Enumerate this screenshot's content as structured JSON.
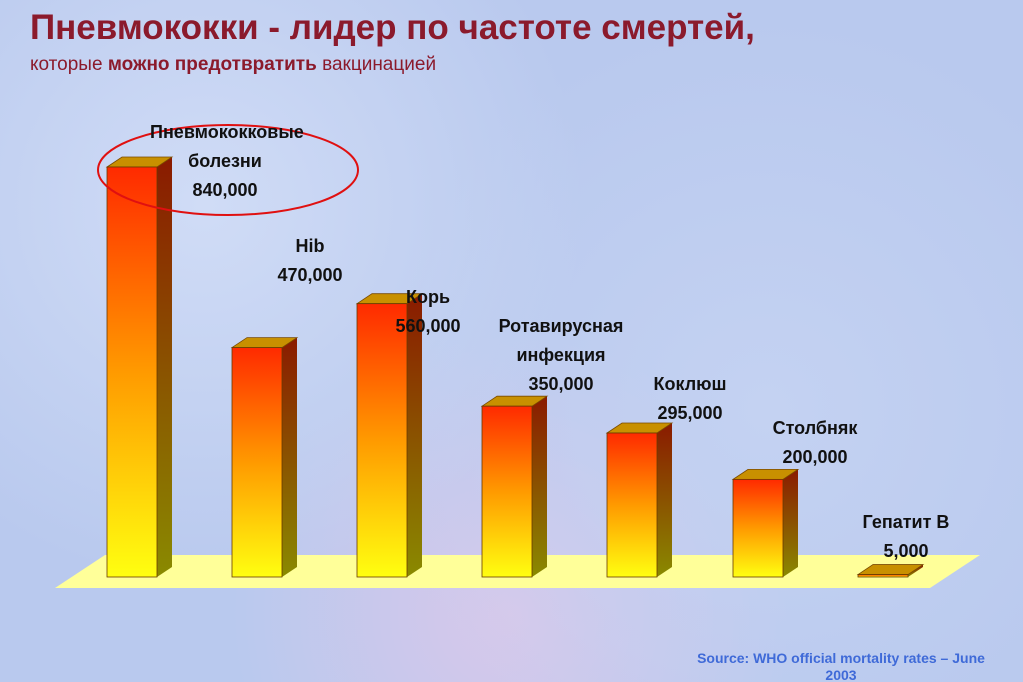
{
  "chart_data": {
    "type": "bar3d",
    "title": "Пневмококки - лидер по частоте смертей,",
    "subtitle": [
      "которые",
      "можно предотвратить",
      "вакцинацией"
    ],
    "categories": [
      "Пневмококковые болезни",
      "Hib",
      "Корь",
      "Ротавирусная инфекция",
      "Коклюш",
      "Столбняк",
      "Гепатит В"
    ],
    "values": [
      840000,
      470000,
      560000,
      350000,
      295000,
      200000,
      5000
    ],
    "value_labels": [
      "840,000",
      "470,000",
      "560,000",
      "350,000",
      "295,000",
      "200,000",
      "5,000"
    ],
    "color": "#ff2a00",
    "source": "Source: WHO official mortality rates – June 2003"
  }
}
